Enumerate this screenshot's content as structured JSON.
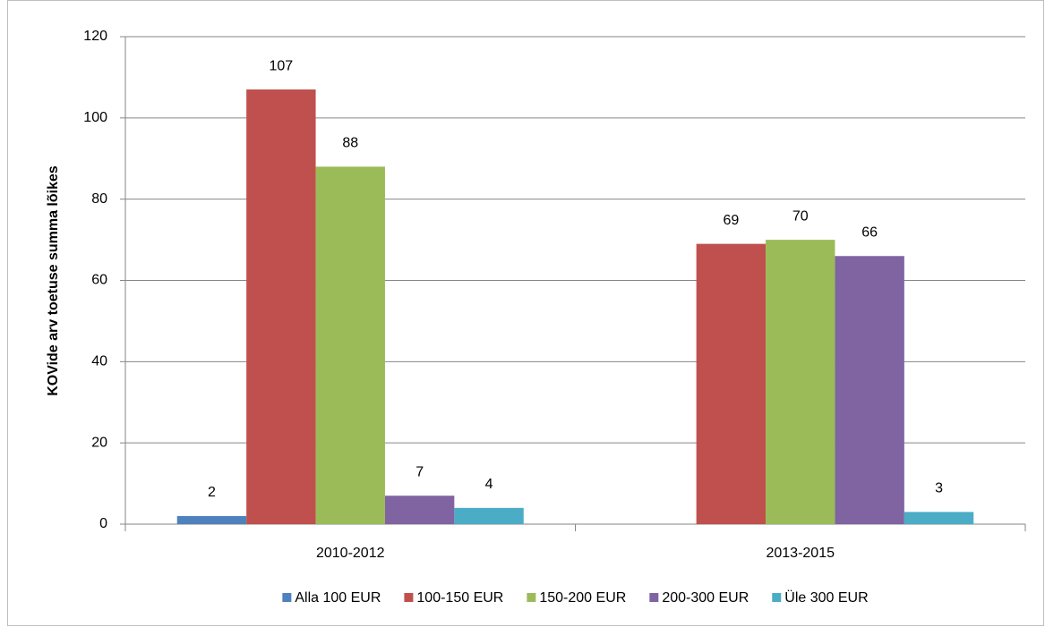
{
  "chart_data": {
    "type": "bar",
    "y_label": "KOVide arv  toetuse summa lõikes",
    "categories": [
      "2010-2012",
      "2013-2015"
    ],
    "series": [
      {
        "name": "Alla 100 EUR",
        "color": "#4f81bd",
        "values": [
          2,
          null
        ]
      },
      {
        "name": "100-150 EUR",
        "color": "#c0504d",
        "values": [
          107,
          69
        ]
      },
      {
        "name": "150-200 EUR",
        "color": "#9bbb59",
        "values": [
          88,
          70
        ]
      },
      {
        "name": "200-300 EUR",
        "color": "#8064a2",
        "values": [
          7,
          66
        ]
      },
      {
        "name": "Üle 300 EUR",
        "color": "#4bacc6",
        "values": [
          4,
          3
        ]
      }
    ],
    "ylim": [
      0,
      120
    ],
    "yticks": [
      0,
      20,
      40,
      60,
      80,
      100,
      120
    ],
    "grid": true,
    "legend": "bottom"
  }
}
